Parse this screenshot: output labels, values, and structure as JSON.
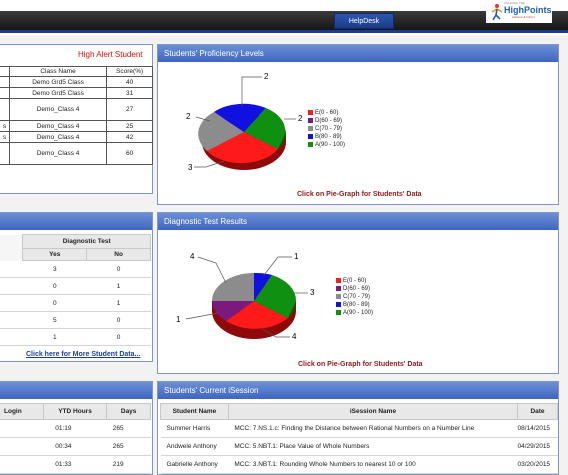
{
  "header": {
    "helpdesk_label": "HelpDesk",
    "logo_pre": "UNLEASH THE",
    "logo_name": "HighPoints",
    "logo_sub": "Achieve & Inform"
  },
  "alert": {
    "title": "High Alert Student",
    "columns": [
      "Class Name",
      "Score(%)"
    ],
    "rows": [
      {
        "prefix": "",
        "cls": "Demo Grd5 Class",
        "score": "40"
      },
      {
        "prefix": "",
        "cls": "Demo Grd5 Class",
        "score": "31"
      },
      {
        "prefix": "",
        "cls": "Demo_Class 4",
        "score": "27"
      },
      {
        "prefix": "s",
        "cls": "Demo_Class 4",
        "score": "25"
      },
      {
        "prefix": "s",
        "cls": "Demo_Class 4",
        "score": "42"
      },
      {
        "prefix": "",
        "cls": "Demo_Class 4",
        "score": "60"
      }
    ]
  },
  "proficiency": {
    "title": "Students' Proficiency Levels",
    "click_label": "Click on Pie-Graph for Students' Data",
    "legend": [
      {
        "label": "E(0 - 60)",
        "color": "#ff1a1a"
      },
      {
        "label": "D(60 - 69)",
        "color": "#7a1a7a"
      },
      {
        "label": "C(70 - 79)",
        "color": "#8c8c8c"
      },
      {
        "label": "B(80 - 89)",
        "color": "#1010e0"
      },
      {
        "label": "A(90 - 100)",
        "color": "#109010"
      }
    ],
    "callouts": [
      "2",
      "2",
      "2",
      "3"
    ]
  },
  "diagnostic": {
    "title": "Diagnostic Test Results",
    "group_header": "Diagnostic Test",
    "col_yes": "Yes",
    "col_no": "No",
    "rows": [
      {
        "yes": "3",
        "no": "0"
      },
      {
        "yes": "0",
        "no": "1"
      },
      {
        "yes": "0",
        "no": "1"
      },
      {
        "yes": "5",
        "no": "0"
      },
      {
        "yes": "1",
        "no": "0"
      }
    ],
    "more_link": "Click here for More Student Data...",
    "click_label": "Click on Pie-Graph for Students' Data",
    "legend": [
      {
        "label": "E(0 - 60)",
        "color": "#ff1a1a"
      },
      {
        "label": "D(60 - 69)",
        "color": "#7a1a7a"
      },
      {
        "label": "C(70 - 79)",
        "color": "#8c8c8c"
      },
      {
        "label": "B(80 - 89)",
        "color": "#1010e0"
      },
      {
        "label": "A(90 - 100)",
        "color": "#109010"
      }
    ],
    "callouts": [
      "1",
      "3",
      "4",
      "1",
      "4"
    ]
  },
  "logins": {
    "columns": [
      "Login",
      "YTD Hours",
      "Days"
    ],
    "rows": [
      {
        "ytd": "01:19",
        "days": "265"
      },
      {
        "ytd": "00:34",
        "days": "265"
      },
      {
        "ytd": "01:33",
        "days": "219"
      }
    ]
  },
  "isession": {
    "title": "Students' Current iSession",
    "columns": [
      "Student Name",
      "iSession Name",
      "Date"
    ],
    "rows": [
      {
        "name": "Summer Harris",
        "session": "MCC: 7.NS.1.c: Finding the Distance between Rational Numbers on a Number Line",
        "date": "08/14/2015"
      },
      {
        "name": "Andwele Anthony",
        "session": "MCC: 5.NBT.1: Place Value of Whole Numbers",
        "date": "04/29/2015"
      },
      {
        "name": "Gabrielle Anthony",
        "session": "MCC: 3.NBT.1: Rounding Whole Numbers to nearest 10 or 100",
        "date": "03/20/2015"
      }
    ]
  }
}
